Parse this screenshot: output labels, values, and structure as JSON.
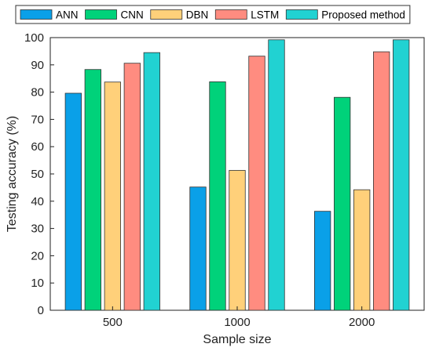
{
  "chart_data": {
    "type": "bar",
    "categories": [
      "500",
      "1000",
      "2000"
    ],
    "series": [
      {
        "name": "ANN",
        "values": [
          79.6,
          45.2,
          36.3
        ],
        "color": "#0aa0e8"
      },
      {
        "name": "CNN",
        "values": [
          88.3,
          83.8,
          78.1
        ],
        "color": "#00d27a"
      },
      {
        "name": "DBN",
        "values": [
          83.7,
          51.3,
          44.2
        ],
        "color": "#ffd07a"
      },
      {
        "name": "LSTM",
        "values": [
          90.6,
          93.2,
          94.8
        ],
        "color": "#ff8c80"
      },
      {
        "name": "Proposed method",
        "values": [
          94.5,
          99.2,
          99.2
        ],
        "color": "#21d2d2"
      }
    ],
    "xlabel": "Sample size",
    "ylabel": "Testing accuracy (%)",
    "ylim": [
      0,
      100
    ],
    "yticks": [
      0,
      10,
      20,
      30,
      40,
      50,
      60,
      70,
      80,
      90,
      100
    ],
    "legend_position": "top",
    "grid": false
  }
}
